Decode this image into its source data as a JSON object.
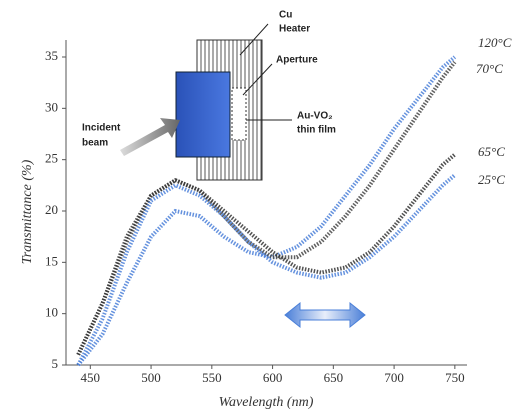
{
  "chart_data": {
    "type": "line",
    "x_label": "Wavelength (nm)",
    "y_label": "Transmittance (%)",
    "xlim": [
      430,
      760
    ],
    "ylim": [
      5,
      35
    ],
    "xticks": [
      450,
      500,
      550,
      600,
      650,
      700,
      750
    ],
    "yticks": [
      5,
      10,
      15,
      20,
      25,
      30,
      35
    ],
    "x": [
      440,
      460,
      480,
      500,
      520,
      540,
      560,
      580,
      600,
      620,
      640,
      660,
      680,
      700,
      720,
      740,
      750
    ],
    "series": [
      {
        "name": "120°C",
        "color": "#4a7fd8",
        "values": [
          5,
          8,
          13,
          17.5,
          20,
          19.5,
          17.5,
          16,
          15.5,
          16.5,
          18.5,
          21.5,
          24.5,
          28,
          31,
          34,
          35
        ]
      },
      {
        "name": "70°C",
        "color": "#444444",
        "values": [
          6,
          11,
          17,
          21.5,
          23,
          22,
          19.5,
          17,
          15.5,
          15.5,
          17,
          19.5,
          22.5,
          26,
          29.5,
          33,
          34.5
        ]
      },
      {
        "name": "65°C",
        "color": "#333333",
        "values": [
          6,
          11,
          17.5,
          21.5,
          23,
          22,
          20,
          18,
          16,
          14.5,
          14,
          14.5,
          16,
          18.5,
          21.5,
          24.5,
          25.5
        ]
      },
      {
        "name": "25°C",
        "color": "#4a7fd8",
        "values": [
          5,
          9.5,
          16,
          21,
          22.5,
          21.5,
          19.5,
          17,
          15,
          14,
          13.5,
          14,
          15.5,
          17.5,
          20,
          22.5,
          23.5
        ]
      }
    ],
    "inset": {
      "heater": [
        "Cu",
        "Heater"
      ],
      "aperture": "Aperture",
      "film": [
        "Au-VO₂",
        "thin film"
      ],
      "beam": [
        "Incident",
        "beam"
      ]
    }
  }
}
